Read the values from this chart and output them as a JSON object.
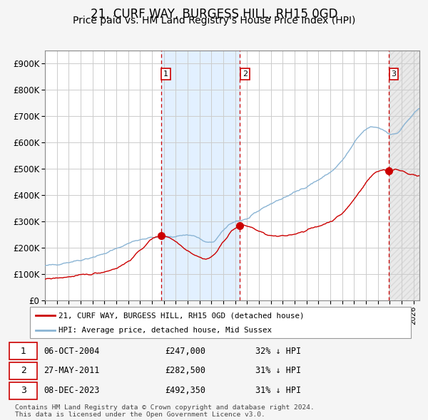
{
  "title": "21, CURF WAY, BURGESS HILL, RH15 0GD",
  "subtitle": "Price paid vs. HM Land Registry's House Price Index (HPI)",
  "ylim": [
    0,
    950000
  ],
  "yticks": [
    0,
    100000,
    200000,
    300000,
    400000,
    500000,
    600000,
    700000,
    800000,
    900000
  ],
  "ytick_labels": [
    "£0",
    "£100K",
    "£200K",
    "£300K",
    "£400K",
    "£500K",
    "£600K",
    "£700K",
    "£800K",
    "£900K"
  ],
  "xlim_start": 1995.0,
  "xlim_end": 2026.5,
  "hpi_color": "#8ab4d4",
  "price_color": "#cc0000",
  "background_color": "#f5f5f5",
  "plot_bg_color": "#ffffff",
  "grid_color": "#cccccc",
  "title_fontsize": 12,
  "subtitle_fontsize": 10,
  "legend_label_red": "21, CURF WAY, BURGESS HILL, RH15 0GD (detached house)",
  "legend_label_blue": "HPI: Average price, detached house, Mid Sussex",
  "transactions": [
    {
      "num": 1,
      "date_x": 2004.76,
      "price": 247000,
      "label": "06-OCT-2004",
      "price_label": "£247,000",
      "hpi_label": "32% ↓ HPI"
    },
    {
      "num": 2,
      "date_x": 2011.4,
      "price": 282500,
      "label": "27-MAY-2011",
      "price_label": "£282,500",
      "hpi_label": "31% ↓ HPI"
    },
    {
      "num": 3,
      "date_x": 2023.93,
      "price": 492350,
      "label": "08-DEC-2023",
      "price_label": "£492,350",
      "hpi_label": "31% ↓ HPI"
    }
  ],
  "footnote": "Contains HM Land Registry data © Crown copyright and database right 2024.\nThis data is licensed under the Open Government Licence v3.0.",
  "shaded_region": [
    2004.76,
    2011.4
  ],
  "hatch_region_start": 2023.93
}
